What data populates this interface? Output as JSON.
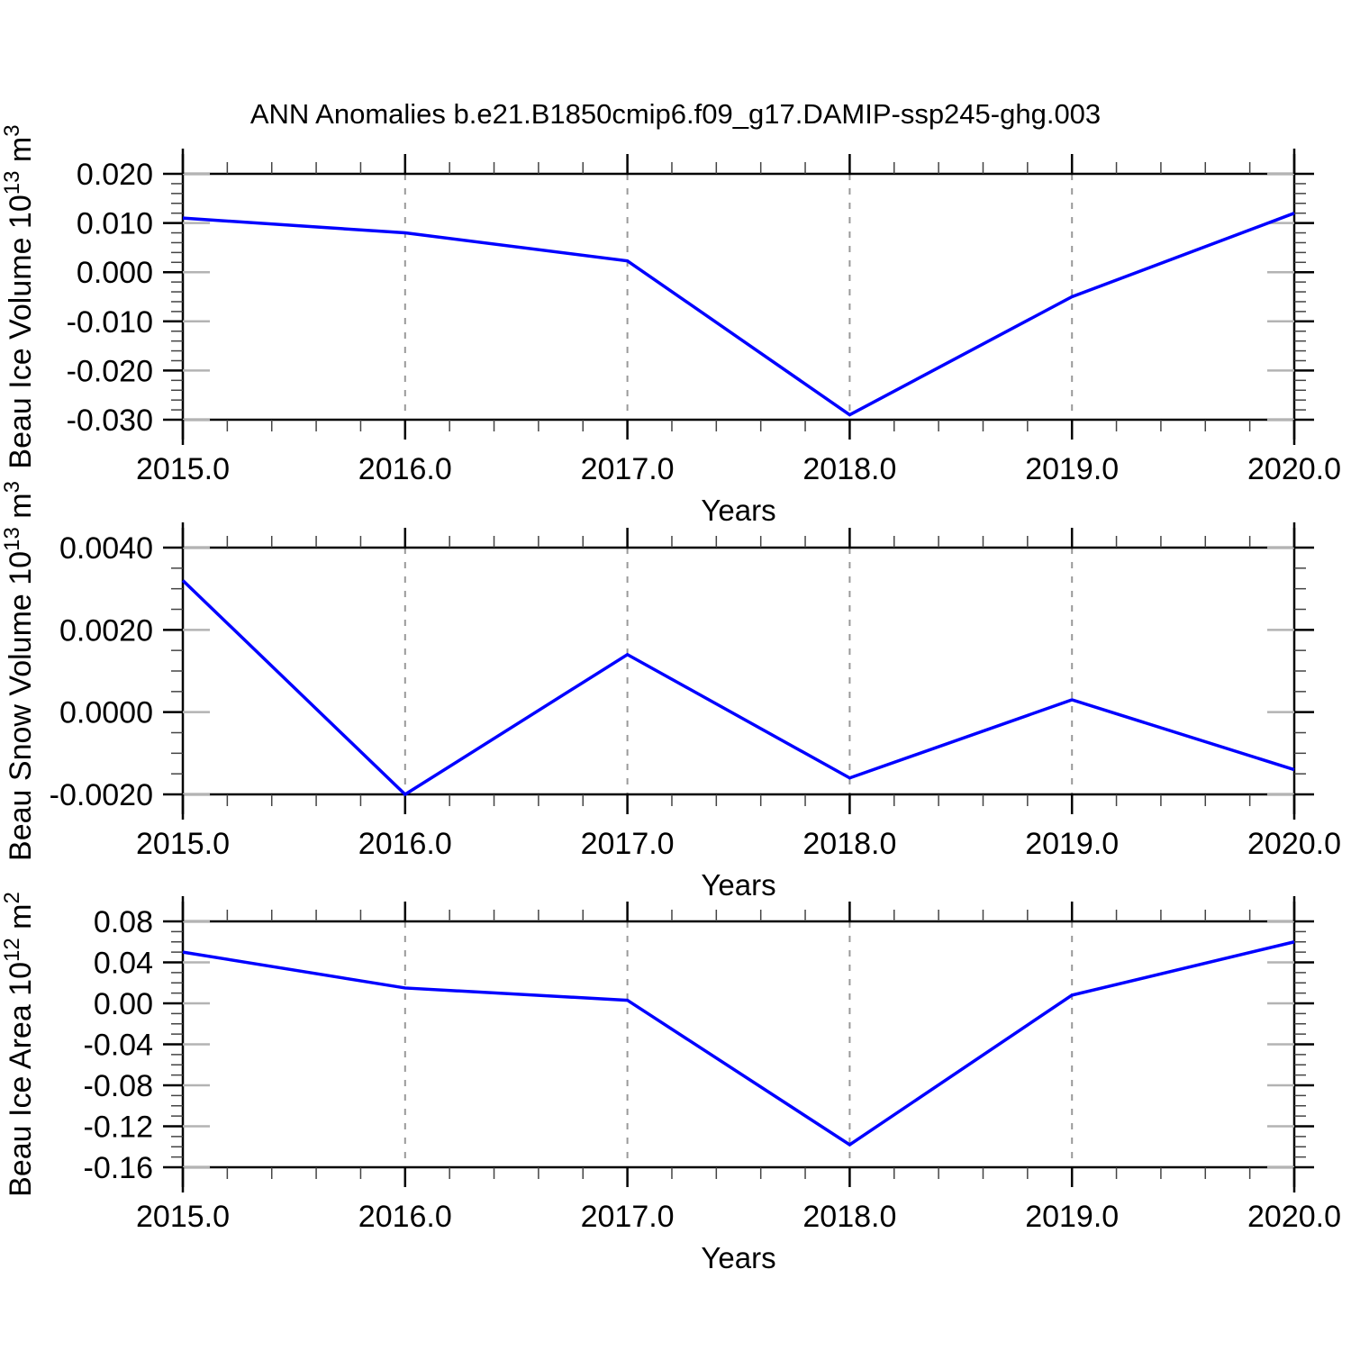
{
  "title": "ANN Anomalies b.e21.B1850cmip6.f09_g17.DAMIP-ssp245-ghg.003",
  "colors": {
    "line": "#0000ff",
    "axis": "#000000",
    "grid_dashed": "#999999",
    "minor_tick": "#444444",
    "inner_stub": "#b3b3b3"
  },
  "chart_data": [
    {
      "type": "line",
      "name": "beau-ice-volume",
      "ylabel_parts": [
        {
          "t": "Beau Ice Volume 10"
        },
        {
          "t": "13",
          "sup": true
        },
        {
          "t": " m"
        },
        {
          "t": "3",
          "sup": true
        }
      ],
      "xlabel": "Years",
      "x": [
        2015.0,
        2016.0,
        2017.0,
        2018.0,
        2019.0,
        2020.0
      ],
      "values": [
        0.011,
        0.008,
        0.0023,
        -0.029,
        -0.005,
        0.012
      ],
      "xlim": [
        2015,
        2020
      ],
      "ylim": [
        -0.03,
        0.02
      ],
      "ytick_labels": [
        "0.020",
        "0.010",
        "0.000",
        "-0.010",
        "-0.020",
        "-0.030"
      ],
      "xtick_labels": [
        "2015.0",
        "2016.0",
        "2017.0",
        "2018.0",
        "2019.0",
        "2020.0"
      ],
      "y_minor_step": 0.002,
      "x_minor_step": 0.2,
      "x_gridlines": [
        2016,
        2017,
        2018,
        2019
      ],
      "grid": "vertical-dashed",
      "legend": "none"
    },
    {
      "type": "line",
      "name": "beau-snow-volume",
      "ylabel_parts": [
        {
          "t": "Beau Snow Volume 10"
        },
        {
          "t": "13",
          "sup": true
        },
        {
          "t": " m"
        },
        {
          "t": "3",
          "sup": true
        }
      ],
      "xlabel": "Years",
      "x": [
        2015.0,
        2016.0,
        2017.0,
        2018.0,
        2019.0,
        2020.0
      ],
      "values": [
        0.0032,
        -0.002,
        0.0014,
        -0.0016,
        0.0003,
        -0.0014
      ],
      "xlim": [
        2015,
        2020
      ],
      "ylim": [
        -0.002,
        0.004
      ],
      "ytick_labels": [
        "0.0040",
        "0.0020",
        "0.0000",
        "-0.0020"
      ],
      "xtick_labels": [
        "2015.0",
        "2016.0",
        "2017.0",
        "2018.0",
        "2019.0",
        "2020.0"
      ],
      "y_minor_step": 0.0005,
      "x_minor_step": 0.2,
      "x_gridlines": [
        2016,
        2017,
        2018,
        2019
      ],
      "grid": "vertical-dashed",
      "legend": "none"
    },
    {
      "type": "line",
      "name": "beau-ice-area",
      "ylabel_parts": [
        {
          "t": "Beau Ice Area 10"
        },
        {
          "t": "12",
          "sup": true
        },
        {
          "t": " m"
        },
        {
          "t": "2",
          "sup": true
        }
      ],
      "xlabel": "Years",
      "x": [
        2015.0,
        2016.0,
        2017.0,
        2018.0,
        2019.0,
        2020.0
      ],
      "values": [
        0.05,
        0.015,
        0.003,
        -0.138,
        0.008,
        0.06
      ],
      "xlim": [
        2015,
        2020
      ],
      "ylim": [
        -0.16,
        0.08
      ],
      "ytick_labels": [
        "0.08",
        "0.04",
        "0.00",
        "-0.04",
        "-0.08",
        "-0.12",
        "-0.16"
      ],
      "xtick_labels": [
        "2015.0",
        "2016.0",
        "2017.0",
        "2018.0",
        "2019.0",
        "2020.0"
      ],
      "y_minor_step": 0.01,
      "x_minor_step": 0.2,
      "x_gridlines": [
        2016,
        2017,
        2018,
        2019
      ],
      "grid": "vertical-dashed",
      "legend": "none"
    }
  ]
}
